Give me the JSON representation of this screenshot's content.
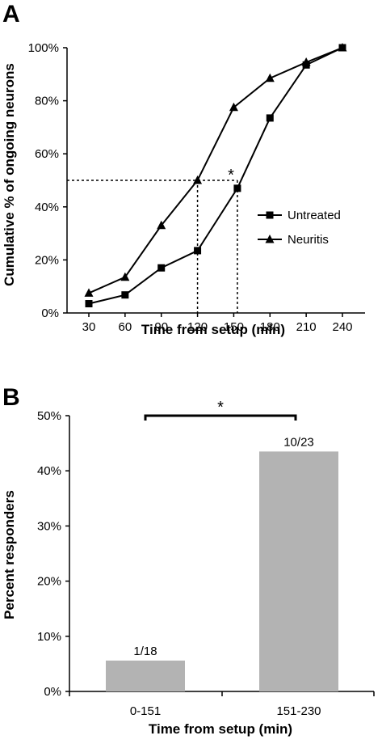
{
  "chart_data": [
    {
      "panel": "A",
      "type": "line",
      "xlabel": "Time from setup (min)",
      "ylabel": "Cumulative % of ongoing neurons",
      "x": [
        30,
        60,
        90,
        120,
        150,
        180,
        210,
        240
      ],
      "xticks": [
        "30",
        "60",
        "90",
        "120",
        "150",
        "180",
        "210",
        "240"
      ],
      "ylim": [
        0,
        100
      ],
      "yticks": [
        "0%",
        "20%",
        "40%",
        "60%",
        "80%",
        "100%"
      ],
      "series": [
        {
          "name": "Untreated",
          "marker": "square",
          "x": [
            30,
            60,
            90,
            120,
            153,
            180,
            210,
            240
          ],
          "values": [
            3.5,
            6.8,
            17,
            23.5,
            47,
            73.5,
            93.5,
            100
          ]
        },
        {
          "name": "Neuritis",
          "marker": "triangle",
          "x": [
            30,
            60,
            90,
            120,
            150,
            180,
            210,
            240
          ],
          "values": [
            7.5,
            13.5,
            33,
            50,
            77.5,
            88.5,
            94.5,
            100
          ]
        }
      ],
      "reference_lines": {
        "y": 50,
        "x": [
          120,
          153
        ]
      },
      "annotation": "*",
      "legend_position": "right",
      "grid": false
    },
    {
      "panel": "B",
      "type": "bar",
      "xlabel": "Time from setup (min)",
      "ylabel": "Percent responders",
      "categories": [
        "0-151",
        "151-230"
      ],
      "values": [
        5.6,
        43.5
      ],
      "data_labels": [
        "1/18",
        "10/23"
      ],
      "ylim": [
        0,
        50
      ],
      "yticks": [
        "0%",
        "10%",
        "20%",
        "30%",
        "40%",
        "50%"
      ],
      "bar_color": "#b3b3b3",
      "annotation": "*",
      "grid": false
    }
  ]
}
